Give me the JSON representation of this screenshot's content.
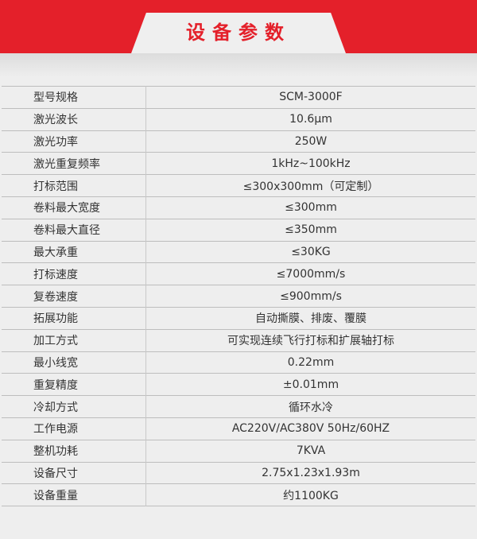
{
  "title": "设备参数",
  "colors": {
    "accent": "#e4202a"
  },
  "rows": [
    {
      "label": "型号规格",
      "value": "SCM-3000F"
    },
    {
      "label": "激光波长",
      "value": "10.6μm"
    },
    {
      "label": "激光功率",
      "value": "250W"
    },
    {
      "label": "激光重复频率",
      "value": "1kHz~100kHz"
    },
    {
      "label": "打标范围",
      "value": "≤300x300mm（可定制）"
    },
    {
      "label": "卷料最大宽度",
      "value": "≤300mm"
    },
    {
      "label": "卷料最大直径",
      "value": "≤350mm"
    },
    {
      "label": "最大承重",
      "value": "≤30KG"
    },
    {
      "label": "打标速度",
      "value": "≤7000mm/s"
    },
    {
      "label": "复卷速度",
      "value": "≤900mm/s"
    },
    {
      "label": "拓展功能",
      "value": "自动撕膜、排废、覆膜"
    },
    {
      "label": "加工方式",
      "value": "可实现连续飞行打标和扩展轴打标"
    },
    {
      "label": "最小线宽",
      "value": "0.22mm"
    },
    {
      "label": "重复精度",
      "value": "±0.01mm"
    },
    {
      "label": "冷却方式",
      "value": "循环水冷"
    },
    {
      "label": "工作电源",
      "value": "AC220V/AC380V  50Hz/60HZ"
    },
    {
      "label": "整机功耗",
      "value": "7KVA"
    },
    {
      "label": "设备尺寸",
      "value": "2.75x1.23x1.93m"
    },
    {
      "label": "设备重量",
      "value": "约1100KG"
    }
  ]
}
